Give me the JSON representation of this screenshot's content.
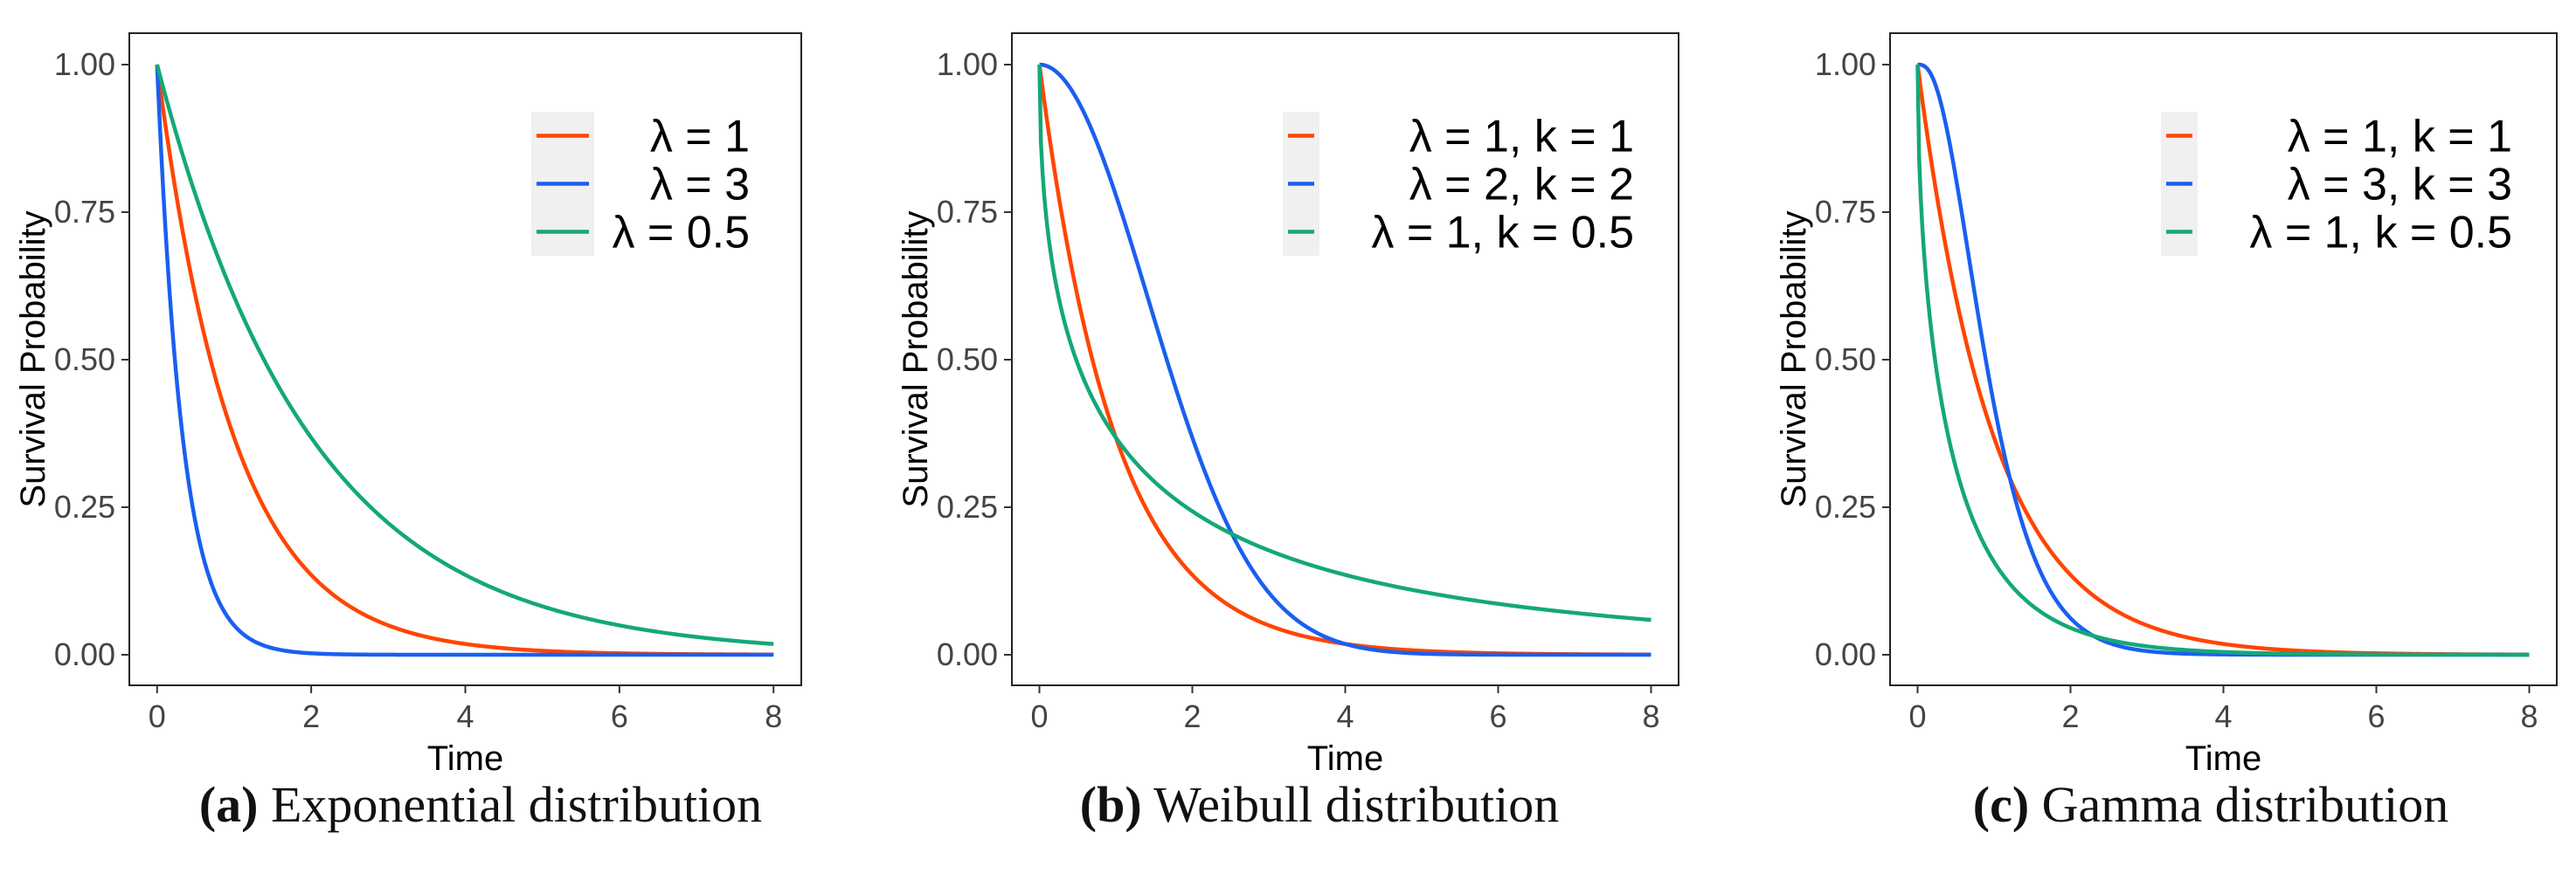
{
  "chart_data": [
    {
      "type": "line",
      "title": "",
      "xlabel": "Time",
      "ylabel": "Survival Probability",
      "xlim": [
        0,
        8
      ],
      "ylim": [
        0,
        1
      ],
      "xticks": [
        0,
        2,
        4,
        6,
        8
      ],
      "xtick_labels": [
        "0",
        "2",
        "4",
        "6",
        "8"
      ],
      "yticks": [
        0,
        0.25,
        0.5,
        0.75,
        1.0
      ],
      "ytick_labels": [
        "0.00",
        "0.25",
        "0.50",
        "0.75",
        "1.00"
      ],
      "legend_position": "top-right",
      "caption": {
        "label": "(a)",
        "text": "Exponential distribution"
      },
      "series": [
        {
          "name": "λ = 1",
          "distribution": "exponential",
          "lambda": 1,
          "color": "#ff4500"
        },
        {
          "name": "λ = 3",
          "distribution": "exponential",
          "lambda": 3,
          "color": "#1a5ff0"
        },
        {
          "name": "λ = 0.5",
          "distribution": "exponential",
          "lambda": 0.5,
          "color": "#14a877"
        }
      ]
    },
    {
      "type": "line",
      "title": "",
      "xlabel": "Time",
      "ylabel": "Survival Probability",
      "xlim": [
        0,
        8
      ],
      "ylim": [
        0,
        1
      ],
      "xticks": [
        0,
        2,
        4,
        6,
        8
      ],
      "xtick_labels": [
        "0",
        "2",
        "4",
        "6",
        "8"
      ],
      "yticks": [
        0,
        0.25,
        0.5,
        0.75,
        1.0
      ],
      "ytick_labels": [
        "0.00",
        "0.25",
        "0.50",
        "0.75",
        "1.00"
      ],
      "legend_position": "top-right",
      "caption": {
        "label": "(b)",
        "text": "Weibull distribution"
      },
      "series": [
        {
          "name": "λ = 1, k = 1",
          "distribution": "weibull",
          "lambda": 1,
          "k": 1,
          "color": "#ff4500"
        },
        {
          "name": "λ = 2, k = 2",
          "distribution": "weibull",
          "lambda": 2,
          "k": 2,
          "color": "#1a5ff0"
        },
        {
          "name": "λ = 1, k = 0.5",
          "distribution": "weibull",
          "lambda": 1,
          "k": 0.5,
          "color": "#14a877"
        }
      ]
    },
    {
      "type": "line",
      "title": "",
      "xlabel": "Time",
      "ylabel": "Survival Probability",
      "xlim": [
        0,
        8
      ],
      "ylim": [
        0,
        1
      ],
      "xticks": [
        0,
        2,
        4,
        6,
        8
      ],
      "xtick_labels": [
        "0",
        "2",
        "4",
        "6",
        "8"
      ],
      "yticks": [
        0,
        0.25,
        0.5,
        0.75,
        1.0
      ],
      "ytick_labels": [
        "0.00",
        "0.25",
        "0.50",
        "0.75",
        "1.00"
      ],
      "legend_position": "top-right",
      "caption": {
        "label": "(c)",
        "text": "Gamma distribution"
      },
      "series": [
        {
          "name": "λ = 1, k = 1",
          "distribution": "gamma",
          "lambda": 1,
          "k": 1,
          "color": "#ff4500"
        },
        {
          "name": "λ = 3, k = 3",
          "distribution": "gamma",
          "lambda": 3,
          "k": 3,
          "color": "#1a5ff0"
        },
        {
          "name": "λ = 1, k = 0.5",
          "distribution": "gamma",
          "lambda": 1,
          "k": 0.5,
          "color": "#14a877"
        }
      ]
    }
  ]
}
